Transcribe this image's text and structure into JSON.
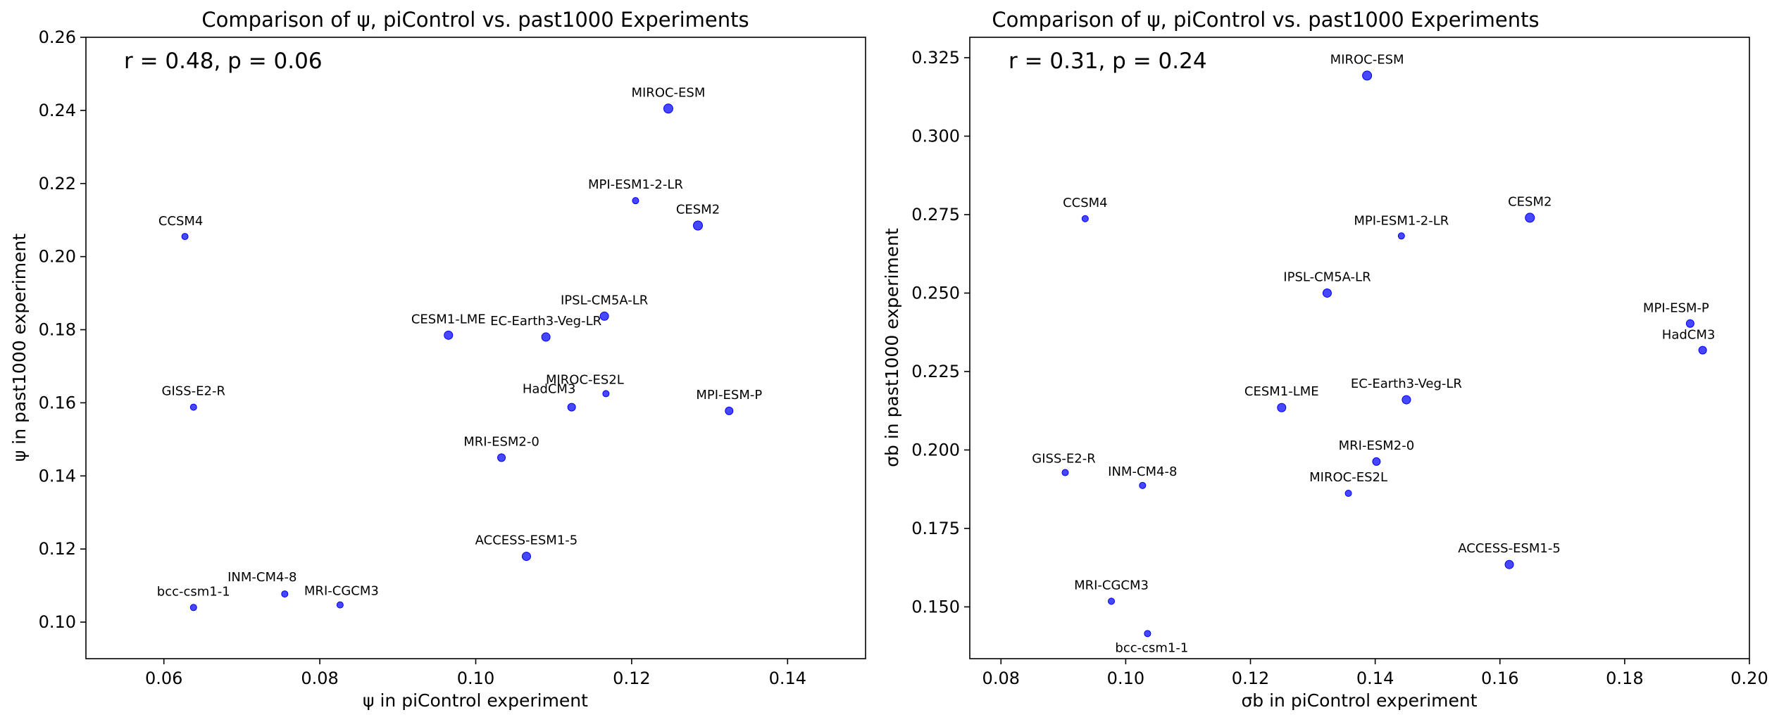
{
  "chart_data": [
    {
      "type": "scatter",
      "title": "Comparison of ψ, piControl vs. past1000 Experiments",
      "xlabel": "ψ in piControl experiment",
      "ylabel": "ψ in past1000 experiment",
      "annotation": "r = 0.48, p = 0.06",
      "xlim": [
        0.05,
        0.15
      ],
      "ylim": [
        0.09,
        0.26
      ],
      "xticks": [
        "0.06",
        "0.08",
        "0.10",
        "0.12",
        "0.14"
      ],
      "yticks": [
        "0.10",
        "0.12",
        "0.14",
        "0.16",
        "0.18",
        "0.20",
        "0.22",
        "0.24",
        "0.26"
      ],
      "grid": false,
      "marker_color": "#0000ff",
      "points": [
        {
          "label": "MIROC-ESM",
          "x": 0.1247,
          "y": 0.2405
        },
        {
          "label": "MPI-ESM1-2-LR",
          "x": 0.1205,
          "y": 0.2153
        },
        {
          "label": "CESM2",
          "x": 0.1285,
          "y": 0.2085
        },
        {
          "label": "CCSM4",
          "x": 0.0627,
          "y": 0.2055
        },
        {
          "label": "IPSL-CM5A-LR",
          "x": 0.1165,
          "y": 0.1837
        },
        {
          "label": "CESM1-LME",
          "x": 0.0965,
          "y": 0.1785
        },
        {
          "label": "EC-Earth3-Veg-LR",
          "x": 0.109,
          "y": 0.178
        },
        {
          "label": "MIROC-ES2L",
          "x": 0.1167,
          "y": 0.1625
        },
        {
          "label": "HadCM3",
          "x": 0.1123,
          "y": 0.1588
        },
        {
          "label": "MPI-ESM-P",
          "x": 0.1325,
          "y": 0.1578
        },
        {
          "label": "GISS-E2-R",
          "x": 0.0638,
          "y": 0.1588
        },
        {
          "label": "MRI-ESM2-0",
          "x": 0.1033,
          "y": 0.145
        },
        {
          "label": "ACCESS-ESM1-5",
          "x": 0.1065,
          "y": 0.118
        },
        {
          "label": "bcc-csm1-1",
          "x": 0.0638,
          "y": 0.104
        },
        {
          "label": "INM-CM4-8",
          "x": 0.0755,
          "y": 0.1077
        },
        {
          "label": "MRI-CGCM3",
          "x": 0.0826,
          "y": 0.1047
        }
      ]
    },
    {
      "type": "scatter",
      "title": "Comparison of ψ, piControl vs. past1000 Experiments",
      "xlabel": "σb in piControl experiment",
      "ylabel": "σb in past1000 experiment",
      "annotation": "r = 0.31, p = 0.24",
      "xlim": [
        0.075,
        0.2
      ],
      "ylim": [
        0.1335,
        0.3315
      ],
      "xticks": [
        "0.08",
        "0.10",
        "0.12",
        "0.14",
        "0.16",
        "0.18",
        "0.20"
      ],
      "yticks": [
        "0.150",
        "0.175",
        "0.200",
        "0.225",
        "0.250",
        "0.275",
        "0.300",
        "0.325"
      ],
      "grid": false,
      "marker_color": "#0000ff",
      "points": [
        {
          "label": "MIROC-ESM",
          "x": 0.1387,
          "y": 0.3193
        },
        {
          "label": "CCSM4",
          "x": 0.0935,
          "y": 0.2737
        },
        {
          "label": "CESM2",
          "x": 0.1648,
          "y": 0.274
        },
        {
          "label": "MPI-ESM1-2-LR",
          "x": 0.1442,
          "y": 0.2682
        },
        {
          "label": "IPSL-CM5A-LR",
          "x": 0.1323,
          "y": 0.25
        },
        {
          "label": "MPI-ESM-P",
          "x": 0.1905,
          "y": 0.2403
        },
        {
          "label": "HadCM3",
          "x": 0.1925,
          "y": 0.2318
        },
        {
          "label": "CESM1-LME",
          "x": 0.125,
          "y": 0.2135
        },
        {
          "label": "EC-Earth3-Veg-LR",
          "x": 0.145,
          "y": 0.216
        },
        {
          "label": "MRI-ESM2-0",
          "x": 0.1402,
          "y": 0.1963
        },
        {
          "label": "GISS-E2-R",
          "x": 0.0903,
          "y": 0.1928
        },
        {
          "label": "INM-CM4-8",
          "x": 0.1027,
          "y": 0.1887
        },
        {
          "label": "MIROC-ES2L",
          "x": 0.1357,
          "y": 0.1862
        },
        {
          "label": "ACCESS-ESM1-5",
          "x": 0.1615,
          "y": 0.1635
        },
        {
          "label": "MRI-CGCM3",
          "x": 0.0977,
          "y": 0.1518
        },
        {
          "label": "bcc-csm1-1",
          "x": 0.1035,
          "y": 0.1415
        }
      ]
    }
  ]
}
